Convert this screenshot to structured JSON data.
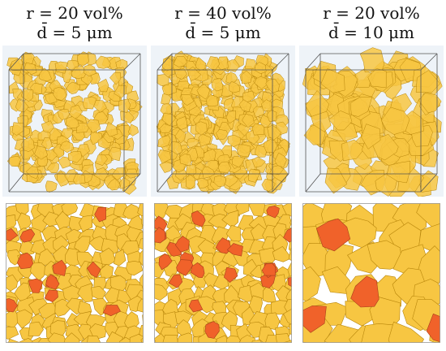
{
  "panels": [
    {
      "id": "a",
      "label_line1": "r = 20 vol%",
      "label_line2": "d̄ = 5 μm",
      "r_vol_percent": 20,
      "mean_diameter_um": 5
    },
    {
      "id": "b",
      "label_line1": "r = 40 vol%",
      "label_line2": "d̄ = 5 μm",
      "r_vol_percent": 40,
      "mean_diameter_um": 5
    },
    {
      "id": "c",
      "label_line1": "r = 20 vol%",
      "label_line2": "d̄ = 10 μm",
      "r_vol_percent": 20,
      "mean_diameter_um": 10
    }
  ],
  "colors": {
    "grain_fill": "#f7c642",
    "grain_stroke": "#b8860b",
    "highlight_fill": "#f0622a",
    "cube_background": "#eef3f8",
    "cube_edge": "#555555"
  }
}
